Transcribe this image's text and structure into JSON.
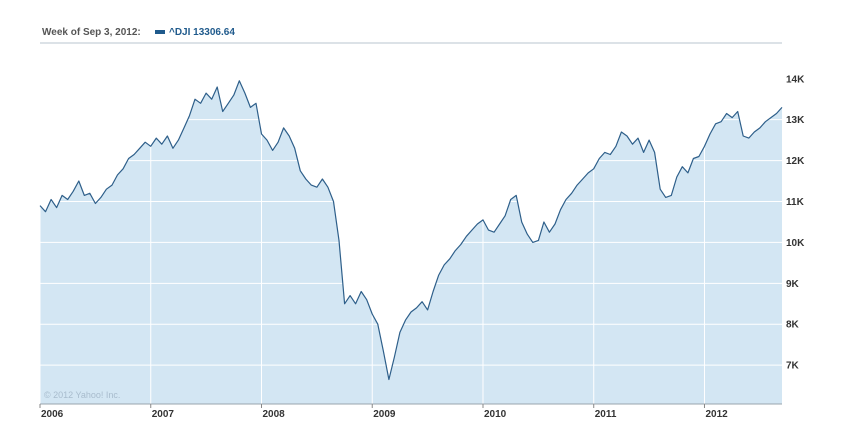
{
  "header": {
    "week_label": "Week of Sep 3, 2012:",
    "series_label": "^DJI 13306.64"
  },
  "copyright": "© 2012 Yahoo! Inc.",
  "colors": {
    "line": "#2e5f8a",
    "fill": "#d3e6f3",
    "grid": "#ffffff",
    "axis": "#b9c5cf",
    "legend_swatch": "#1f5a8c"
  },
  "chart_data": {
    "type": "area",
    "title": "",
    "xlabel": "",
    "ylabel": "",
    "series": [
      {
        "name": "^DJI",
        "x": [
          2006.0,
          2006.05,
          2006.1,
          2006.15,
          2006.2,
          2006.25,
          2006.3,
          2006.35,
          2006.4,
          2006.45,
          2006.5,
          2006.55,
          2006.6,
          2006.65,
          2006.7,
          2006.75,
          2006.8,
          2006.85,
          2006.9,
          2006.95,
          2007.0,
          2007.05,
          2007.1,
          2007.15,
          2007.2,
          2007.25,
          2007.3,
          2007.35,
          2007.4,
          2007.45,
          2007.5,
          2007.55,
          2007.6,
          2007.65,
          2007.7,
          2007.75,
          2007.8,
          2007.85,
          2007.9,
          2007.95,
          2008.0,
          2008.05,
          2008.1,
          2008.15,
          2008.2,
          2008.25,
          2008.3,
          2008.35,
          2008.4,
          2008.45,
          2008.5,
          2008.55,
          2008.6,
          2008.65,
          2008.7,
          2008.75,
          2008.8,
          2008.85,
          2008.9,
          2008.95,
          2009.0,
          2009.05,
          2009.1,
          2009.15,
          2009.2,
          2009.25,
          2009.3,
          2009.35,
          2009.4,
          2009.45,
          2009.5,
          2009.55,
          2009.6,
          2009.65,
          2009.7,
          2009.75,
          2009.8,
          2009.85,
          2009.9,
          2009.95,
          2010.0,
          2010.05,
          2010.1,
          2010.15,
          2010.2,
          2010.25,
          2010.3,
          2010.35,
          2010.4,
          2010.45,
          2010.5,
          2010.55,
          2010.6,
          2010.65,
          2010.7,
          2010.75,
          2010.8,
          2010.85,
          2010.9,
          2010.95,
          2011.0,
          2011.05,
          2011.1,
          2011.15,
          2011.2,
          2011.25,
          2011.3,
          2011.35,
          2011.4,
          2011.45,
          2011.5,
          2011.55,
          2011.6,
          2011.65,
          2011.7,
          2011.75,
          2011.8,
          2011.85,
          2011.9,
          2011.95,
          2012.0,
          2012.05,
          2012.1,
          2012.15,
          2012.2,
          2012.25,
          2012.3,
          2012.35,
          2012.4,
          2012.45,
          2012.5,
          2012.55,
          2012.6,
          2012.65,
          2012.7
        ],
        "values": [
          10900,
          10750,
          11050,
          10850,
          11150,
          11050,
          11250,
          11500,
          11150,
          11200,
          10950,
          11100,
          11300,
          11400,
          11650,
          11800,
          12050,
          12150,
          12300,
          12450,
          12350,
          12550,
          12400,
          12600,
          12300,
          12500,
          12800,
          13100,
          13500,
          13400,
          13650,
          13500,
          13800,
          13200,
          13400,
          13600,
          13950,
          13650,
          13300,
          13400,
          12650,
          12500,
          12250,
          12450,
          12800,
          12600,
          12300,
          11750,
          11550,
          11400,
          11350,
          11550,
          11350,
          11000,
          10050,
          8500,
          8700,
          8500,
          8800,
          8600,
          8250,
          8000,
          7350,
          6650,
          7200,
          7800,
          8100,
          8300,
          8400,
          8550,
          8350,
          8800,
          9200,
          9450,
          9600,
          9800,
          9950,
          10150,
          10300,
          10450,
          10550,
          10300,
          10250,
          10450,
          10650,
          11050,
          11150,
          10500,
          10200,
          10000,
          10050,
          10500,
          10250,
          10450,
          10800,
          11050,
          11200,
          11400,
          11550,
          11700,
          11800,
          12050,
          12200,
          12150,
          12350,
          12700,
          12600,
          12400,
          12550,
          12200,
          12500,
          12200,
          11300,
          11100,
          11150,
          11600,
          11850,
          11700,
          12050,
          12100,
          12350,
          12650,
          12900,
          12950,
          13150,
          13050,
          13200,
          12600,
          12550,
          12700,
          12800,
          12950,
          13050,
          13150,
          13300
        ]
      }
    ],
    "x_ticks": [
      2006,
      2007,
      2008,
      2009,
      2010,
      2011,
      2012
    ],
    "x_tick_labels": [
      "2006",
      "2007",
      "2008",
      "2009",
      "2010",
      "2011",
      "2012"
    ],
    "y_ticks": [
      7000,
      8000,
      9000,
      10000,
      11000,
      12000,
      13000,
      14000
    ],
    "y_tick_labels": [
      "7K",
      "8K",
      "9K",
      "10K",
      "11K",
      "12K",
      "13K",
      "14K"
    ],
    "xlim": [
      2006.0,
      2012.7
    ],
    "ylim": [
      6050,
      14850
    ],
    "grid": true,
    "legend": "top-left"
  }
}
